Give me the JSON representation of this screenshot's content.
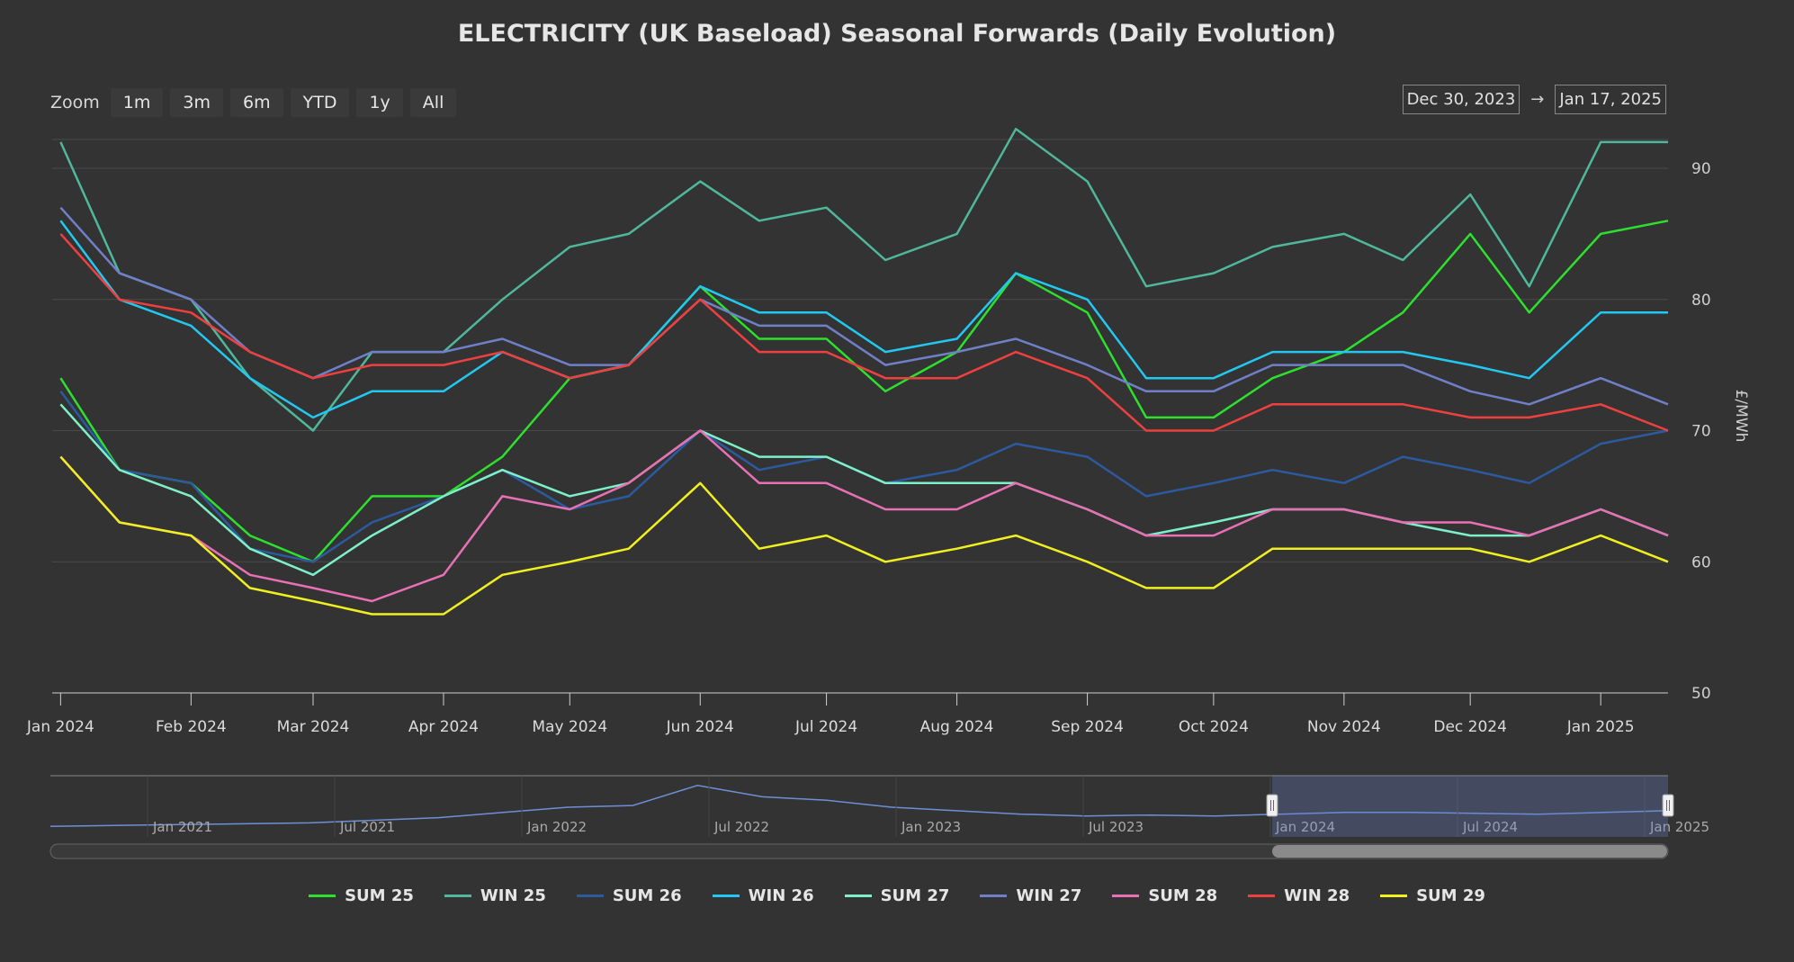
{
  "chart_data": {
    "type": "line",
    "title": "ELECTRICITY (UK Baseload) Seasonal Forwards (Daily Evolution)",
    "ylabel": "£/MWh",
    "ylim": [
      50,
      90
    ],
    "yticks": [
      50,
      60,
      70,
      80,
      90
    ],
    "grid": "horizontal",
    "legend": "bottom",
    "x_range": [
      "2023-12-30",
      "2025-01-17"
    ],
    "xticks": [
      {
        "label": "Jan 2024",
        "date": "2024-01-01"
      },
      {
        "label": "Feb 2024",
        "date": "2024-02-01"
      },
      {
        "label": "Mar 2024",
        "date": "2024-03-01"
      },
      {
        "label": "Apr 2024",
        "date": "2024-04-01"
      },
      {
        "label": "May 2024",
        "date": "2024-05-01"
      },
      {
        "label": "Jun 2024",
        "date": "2024-06-01"
      },
      {
        "label": "Jul 2024",
        "date": "2024-07-01"
      },
      {
        "label": "Aug 2024",
        "date": "2024-08-01"
      },
      {
        "label": "Sep 2024",
        "date": "2024-09-01"
      },
      {
        "label": "Oct 2024",
        "date": "2024-10-01"
      },
      {
        "label": "Nov 2024",
        "date": "2024-11-01"
      },
      {
        "label": "Dec 2024",
        "date": "2024-12-01"
      },
      {
        "label": "Jan 2025",
        "date": "2025-01-01"
      }
    ],
    "x": [
      "2024-01-01",
      "2024-01-15",
      "2024-02-01",
      "2024-02-15",
      "2024-03-01",
      "2024-03-15",
      "2024-04-01",
      "2024-04-15",
      "2024-05-01",
      "2024-05-15",
      "2024-06-01",
      "2024-06-15",
      "2024-07-01",
      "2024-07-15",
      "2024-08-01",
      "2024-08-15",
      "2024-09-01",
      "2024-09-15",
      "2024-10-01",
      "2024-10-15",
      "2024-11-01",
      "2024-11-15",
      "2024-12-01",
      "2024-12-15",
      "2025-01-01",
      "2025-01-17"
    ],
    "series": [
      {
        "name": "SUM 25",
        "color": "#2ee02e",
        "values": [
          74,
          67,
          66,
          62,
          60,
          65,
          65,
          68,
          74,
          75,
          81,
          77,
          77,
          73,
          76,
          82,
          79,
          71,
          71,
          74,
          76,
          79,
          85,
          79,
          85,
          86
        ]
      },
      {
        "name": "WIN 25",
        "color": "#4fb89a",
        "values": [
          92,
          82,
          80,
          74,
          70,
          76,
          76,
          80,
          84,
          85,
          89,
          86,
          87,
          83,
          85,
          93,
          89,
          81,
          82,
          84,
          85,
          83,
          88,
          81,
          92,
          92
        ]
      },
      {
        "name": "SUM 26",
        "color": "#2c5aa0",
        "values": [
          73,
          67,
          66,
          61,
          60,
          63,
          65,
          67,
          64,
          65,
          70,
          67,
          68,
          66,
          67,
          69,
          68,
          65,
          66,
          67,
          66,
          68,
          67,
          66,
          69,
          70
        ]
      },
      {
        "name": "WIN 26",
        "color": "#22c8f0",
        "values": [
          86,
          80,
          78,
          74,
          71,
          73,
          73,
          76,
          74,
          75,
          81,
          79,
          79,
          76,
          77,
          82,
          80,
          74,
          74,
          76,
          76,
          76,
          75,
          74,
          79,
          79
        ]
      },
      {
        "name": "SUM 27",
        "color": "#7ef0c8",
        "values": [
          72,
          67,
          65,
          61,
          59,
          62,
          65,
          67,
          65,
          66,
          70,
          68,
          68,
          66,
          66,
          66,
          64,
          62,
          63,
          64,
          64,
          63,
          62,
          62,
          64,
          62
        ]
      },
      {
        "name": "WIN 27",
        "color": "#7080c8",
        "values": [
          87,
          82,
          80,
          76,
          74,
          76,
          76,
          77,
          75,
          75,
          80,
          78,
          78,
          75,
          76,
          77,
          75,
          73,
          73,
          75,
          75,
          75,
          73,
          72,
          74,
          72
        ]
      },
      {
        "name": "SUM 28",
        "color": "#e870b4",
        "values": [
          68,
          63,
          62,
          59,
          58,
          57,
          59,
          65,
          64,
          66,
          70,
          66,
          66,
          64,
          64,
          66,
          64,
          62,
          62,
          64,
          64,
          63,
          63,
          62,
          64,
          62
        ]
      },
      {
        "name": "WIN 28",
        "color": "#ef4040",
        "values": [
          85,
          80,
          79,
          76,
          74,
          75,
          75,
          76,
          74,
          75,
          80,
          76,
          76,
          74,
          74,
          76,
          74,
          70,
          70,
          72,
          72,
          72,
          71,
          71,
          72,
          70
        ]
      },
      {
        "name": "SUM 29",
        "color": "#f0f020",
        "values": [
          68,
          63,
          62,
          58,
          57,
          56,
          56,
          59,
          60,
          61,
          66,
          61,
          62,
          60,
          61,
          62,
          60,
          58,
          58,
          61,
          61,
          61,
          61,
          60,
          62,
          60
        ]
      }
    ]
  },
  "ui": {
    "zoom_label": "Zoom",
    "zoom_buttons": [
      "1m",
      "3m",
      "6m",
      "YTD",
      "1y",
      "All"
    ],
    "range_from": "Dec 30, 2023",
    "range_arrow": "→",
    "range_to": "Jan 17, 2025",
    "navigator": {
      "labels": [
        "Jan 2021",
        "Jul 2021",
        "Jan 2022",
        "Jul 2022",
        "Jan 2023",
        "Jul 2023",
        "Jan 2024",
        "Jul 2024",
        "Jan 2025"
      ],
      "values": [
        48,
        49,
        50,
        51,
        52,
        55,
        58,
        64,
        70,
        72,
        95,
        82,
        78,
        70,
        66,
        62,
        60,
        61,
        60,
        62,
        64,
        64,
        63,
        62,
        64,
        66
      ]
    }
  },
  "colors": {
    "background": "#333333",
    "grid": "#4a4a4a",
    "navigator_line": "#6e8fd8",
    "navigator_mask": "rgba(110,130,200,0.3)"
  }
}
